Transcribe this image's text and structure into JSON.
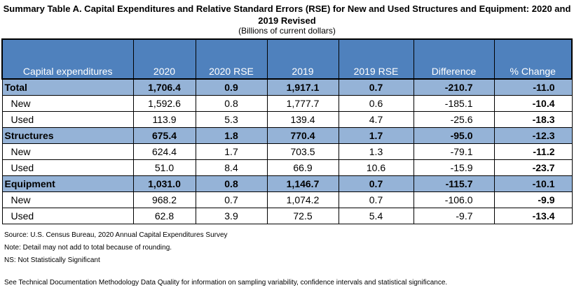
{
  "title": "Summary Table A. Capital Expenditures and Relative Standard Errors (RSE) for New and Used Structures and Equipment: 2020 and 2019 Revised",
  "subtitle": "(Billions of current dollars)",
  "columns": [
    "Capital expenditures",
    "2020",
    "2020 RSE",
    "2019",
    "2019 RSE",
    "Difference",
    "% Change"
  ],
  "rows": [
    {
      "label": "Total",
      "section": true,
      "v2020": "1,706.4",
      "rse2020": "0.9",
      "v2019": "1,917.1",
      "rse2019": "0.7",
      "diff": "-210.7",
      "pct": "-11.0"
    },
    {
      "label": "New",
      "section": false,
      "v2020": "1,592.6",
      "rse2020": "0.8",
      "v2019": "1,777.7",
      "rse2019": "0.6",
      "diff": "-185.1",
      "pct": "-10.4"
    },
    {
      "label": "Used",
      "section": false,
      "v2020": "113.9",
      "rse2020": "5.3",
      "v2019": "139.4",
      "rse2019": "4.7",
      "diff": "-25.6",
      "pct": "-18.3"
    },
    {
      "label": "Structures",
      "section": true,
      "v2020": "675.4",
      "rse2020": "1.8",
      "v2019": "770.4",
      "rse2019": "1.7",
      "diff": "-95.0",
      "pct": "-12.3"
    },
    {
      "label": "New",
      "section": false,
      "v2020": "624.4",
      "rse2020": "1.7",
      "v2019": "703.5",
      "rse2019": "1.3",
      "diff": "-79.1",
      "pct": "-11.2"
    },
    {
      "label": "Used",
      "section": false,
      "v2020": "51.0",
      "rse2020": "8.4",
      "v2019": "66.9",
      "rse2019": "10.6",
      "diff": "-15.9",
      "pct": "-23.7"
    },
    {
      "label": "Equipment",
      "section": true,
      "v2020": "1,031.0",
      "rse2020": "0.8",
      "v2019": "1,146.7",
      "rse2019": "0.7",
      "diff": "-115.7",
      "pct": "-10.1"
    },
    {
      "label": "New",
      "section": false,
      "v2020": "968.2",
      "rse2020": "0.7",
      "v2019": "1,074.2",
      "rse2019": "0.7",
      "diff": "-106.0",
      "pct": "-9.9"
    },
    {
      "label": "Used",
      "section": false,
      "v2020": "62.8",
      "rse2020": "3.9",
      "v2019": "72.5",
      "rse2019": "5.4",
      "diff": "-9.7",
      "pct": "-13.4"
    }
  ],
  "notes": {
    "source": "Source: U.S. Census Bureau, 2020 Annual Capital Expenditures Survey",
    "detail": "Note: Detail may not add to total because of rounding.",
    "ns": "NS: Not Statistically Significant",
    "methodology": "See Technical Documentation Methodology Data Quality for information on sampling variability, confidence intervals and statistical significance."
  },
  "colors": {
    "header": "#4f81bd",
    "section": "#95b3d7"
  }
}
